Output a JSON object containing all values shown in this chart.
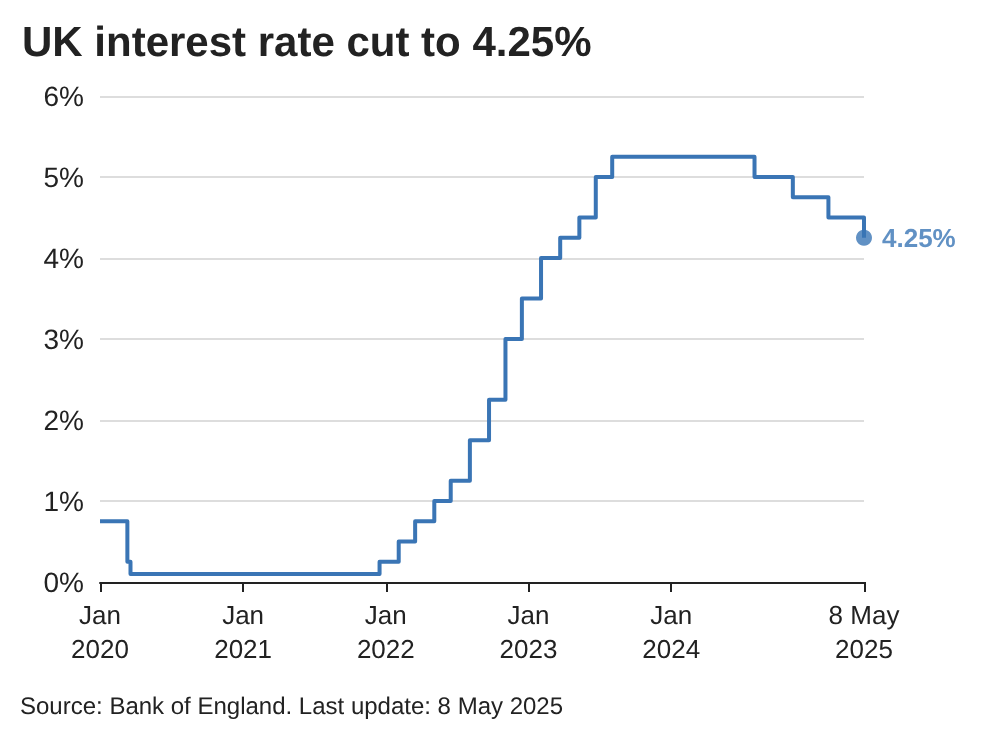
{
  "chart_data": {
    "type": "step",
    "title": "UK interest rate cut to 4.25%",
    "x": [
      "2020-01-01",
      "2020-03-11",
      "2020-03-19",
      "2021-12-16",
      "2022-02-03",
      "2022-03-17",
      "2022-05-05",
      "2022-06-16",
      "2022-08-04",
      "2022-09-22",
      "2022-11-03",
      "2022-12-15",
      "2023-02-02",
      "2023-03-23",
      "2023-05-11",
      "2023-06-22",
      "2023-08-03",
      "2024-08-01",
      "2024-11-07",
      "2025-02-06",
      "2025-05-08"
    ],
    "series": [
      {
        "color": "#3a75b5",
        "values": [
          0.75,
          0.25,
          0.1,
          0.25,
          0.5,
          0.75,
          1.0,
          1.25,
          1.75,
          2.25,
          3.0,
          3.5,
          4.0,
          4.25,
          4.5,
          5.0,
          5.25,
          5.0,
          4.75,
          4.5,
          4.25
        ]
      }
    ],
    "xlim": [
      "2020-01-01",
      "2025-05-08"
    ],
    "xticks": [
      {
        "value": "2020-01-01",
        "label": "Jan\n2020"
      },
      {
        "value": "2021-01-01",
        "label": "Jan\n2021"
      },
      {
        "value": "2022-01-01",
        "label": "Jan\n2022"
      },
      {
        "value": "2023-01-01",
        "label": "Jan\n2023"
      },
      {
        "value": "2024-01-01",
        "label": "Jan\n2024"
      },
      {
        "value": "2025-05-08",
        "label": "8 May\n2025"
      }
    ],
    "ylim": [
      0,
      6
    ],
    "yticks": [
      {
        "value": 0,
        "label": "0%"
      },
      {
        "value": 1,
        "label": "1%"
      },
      {
        "value": 2,
        "label": "2%"
      },
      {
        "value": 3,
        "label": "3%"
      },
      {
        "value": 4,
        "label": "4%"
      },
      {
        "value": 5,
        "label": "5%"
      },
      {
        "value": 6,
        "label": "6%"
      }
    ],
    "grid": "y",
    "marker": "none",
    "line_style": "solid",
    "annotations": [
      {
        "text": "4.25%",
        "x": "2025-05-08",
        "y": 4.25
      },
      "Source: Bank of England. Last update: 8 May 2025"
    ]
  }
}
